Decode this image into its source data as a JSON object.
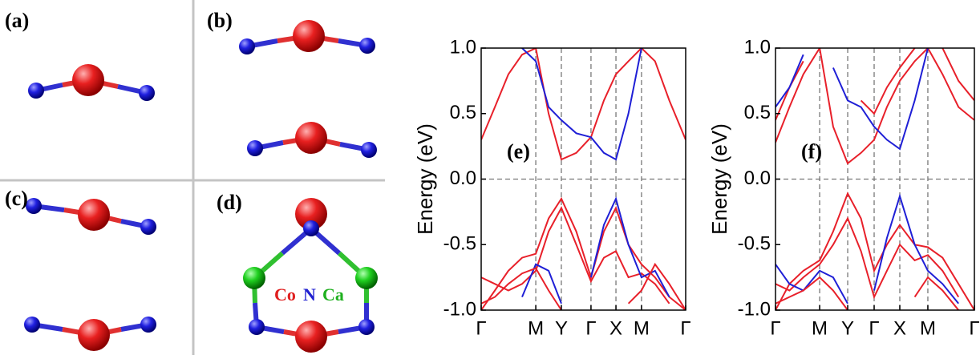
{
  "structure_labels": [
    "(a)",
    "(b)",
    "(c)",
    "(d)"
  ],
  "element_labels": [
    "Co",
    "N",
    "Ca"
  ],
  "chart_data": [
    {
      "type": "line",
      "annotation": "(e)",
      "ylabel": "Energy (eV)",
      "x": [
        0,
        0.067,
        0.133,
        0.2,
        0.267,
        0.33,
        0.392,
        0.465,
        0.537,
        0.6,
        0.659,
        0.72,
        0.784,
        0.85,
        0.92,
        1.0
      ],
      "xlim": [
        0,
        1
      ],
      "xticks": [
        {
          "value": 0,
          "label": "Γ"
        },
        {
          "value": 0.267,
          "label": "M"
        },
        {
          "value": 0.392,
          "label": "Y"
        },
        {
          "value": 0.537,
          "label": "Γ"
        },
        {
          "value": 0.659,
          "label": "X"
        },
        {
          "value": 0.784,
          "label": "M"
        },
        {
          "value": 1.0,
          "label": "Γ"
        }
      ],
      "ylim": [
        -1,
        1
      ],
      "yticks": [
        {
          "value": -1,
          "label": "-1.0"
        },
        -0.5,
        {
          "value": 0,
          "label": "0.0"
        },
        0.5,
        {
          "value": 1,
          "label": "1.0"
        }
      ],
      "reference_line": 0,
      "series": [
        {
          "color": "#e8202a",
          "values": [
            0.3,
            0.55,
            0.8,
            0.95,
            1.0,
            0.5,
            0.15,
            0.2,
            0.32,
            0.6,
            0.8,
            0.9,
            1.0,
            0.9,
            0.6,
            0.3
          ]
        },
        {
          "color": "#1f1fd6",
          "values": [
            null,
            null,
            null,
            1.0,
            0.9,
            0.55,
            0.45,
            0.35,
            0.32,
            0.2,
            0.15,
            0.5,
            1.0,
            null,
            null,
            null
          ]
        },
        {
          "color": "#e8202a",
          "values": [
            -1.0,
            -0.85,
            -0.7,
            -0.6,
            -0.57,
            -0.3,
            -0.15,
            -0.4,
            -0.75,
            -0.4,
            -0.22,
            -0.5,
            -0.65,
            -0.75,
            -0.9,
            -1.0
          ]
        },
        {
          "color": "#e8202a",
          "values": [
            -0.75,
            -0.8,
            -0.85,
            -0.8,
            -0.7,
            -0.4,
            -0.22,
            -0.5,
            -0.78,
            -0.6,
            -0.55,
            -0.75,
            -0.72,
            -0.8,
            -0.95,
            null
          ]
        },
        {
          "color": "#1f1fd6",
          "values": [
            null,
            null,
            null,
            -0.9,
            -0.65,
            -0.7,
            -0.95,
            null,
            -0.75,
            -0.35,
            -0.15,
            -0.5,
            -0.75,
            -0.7,
            -0.9,
            null
          ]
        },
        {
          "color": "#e8202a",
          "values": [
            -0.95,
            -0.9,
            -0.8,
            -0.72,
            -0.68,
            -0.85,
            -1.0,
            null,
            null,
            null,
            null,
            -0.95,
            -0.85,
            -0.65,
            -0.8,
            -1.0
          ]
        }
      ]
    },
    {
      "type": "line",
      "annotation": "(f)",
      "ylabel": "Energy (eV)",
      "x": [
        0,
        0.07,
        0.14,
        0.222,
        0.29,
        0.363,
        0.43,
        0.496,
        0.56,
        0.625,
        0.7,
        0.766,
        0.84,
        0.92,
        1.0
      ],
      "xlim": [
        0,
        1
      ],
      "xticks": [
        {
          "value": 0,
          "label": "Γ"
        },
        {
          "value": 0.222,
          "label": "M"
        },
        {
          "value": 0.363,
          "label": "Y"
        },
        {
          "value": 0.496,
          "label": "Γ"
        },
        {
          "value": 0.625,
          "label": "X"
        },
        {
          "value": 0.766,
          "label": "M"
        },
        {
          "value": 1.0,
          "label": "Γ"
        }
      ],
      "ylim": [
        -1,
        1
      ],
      "yticks": [
        {
          "value": -1,
          "label": "-1.0"
        },
        -0.5,
        {
          "value": 0,
          "label": "0.0"
        },
        0.5,
        {
          "value": 1,
          "label": "1.0"
        }
      ],
      "reference_line": 0,
      "series": [
        {
          "color": "#e8202a",
          "values": [
            0.28,
            0.55,
            0.8,
            1.0,
            0.4,
            0.12,
            0.2,
            0.3,
            0.55,
            0.75,
            0.9,
            1.0,
            0.8,
            0.55,
            0.45
          ]
        },
        {
          "color": "#e8202a",
          "values": [
            0.45,
            0.7,
            0.9,
            null,
            null,
            null,
            0.6,
            0.5,
            0.7,
            0.85,
            1.0,
            null,
            1.0,
            0.75,
            0.6
          ]
        },
        {
          "color": "#1f1fd6",
          "values": [
            0.55,
            0.7,
            0.95,
            null,
            0.85,
            0.6,
            0.55,
            0.4,
            0.3,
            0.23,
            0.6,
            1.0,
            null,
            null,
            null
          ]
        },
        {
          "color": "#e8202a",
          "values": [
            -1.0,
            -0.8,
            -0.7,
            -0.62,
            -0.4,
            -0.11,
            -0.3,
            -0.7,
            -0.5,
            -0.35,
            -0.5,
            -0.52,
            -0.6,
            -0.8,
            -1.0
          ]
        },
        {
          "color": "#e8202a",
          "values": [
            -0.8,
            -0.85,
            -0.75,
            -0.65,
            -0.5,
            -0.3,
            -0.55,
            -0.9,
            -0.7,
            -0.5,
            -0.62,
            -0.58,
            -0.7,
            -0.9,
            null
          ]
        },
        {
          "color": "#1f1fd6",
          "values": [
            -0.65,
            -0.8,
            -0.85,
            -0.7,
            -0.75,
            -0.95,
            null,
            -0.85,
            -0.45,
            -0.13,
            -0.5,
            -0.7,
            -0.8,
            -0.95,
            null
          ]
        },
        {
          "color": "#e8202a",
          "values": [
            -0.95,
            -0.9,
            -0.85,
            -0.75,
            -0.85,
            -1.0,
            null,
            null,
            null,
            null,
            -0.9,
            -0.75,
            -0.85,
            -1.0,
            null
          ]
        }
      ]
    }
  ]
}
